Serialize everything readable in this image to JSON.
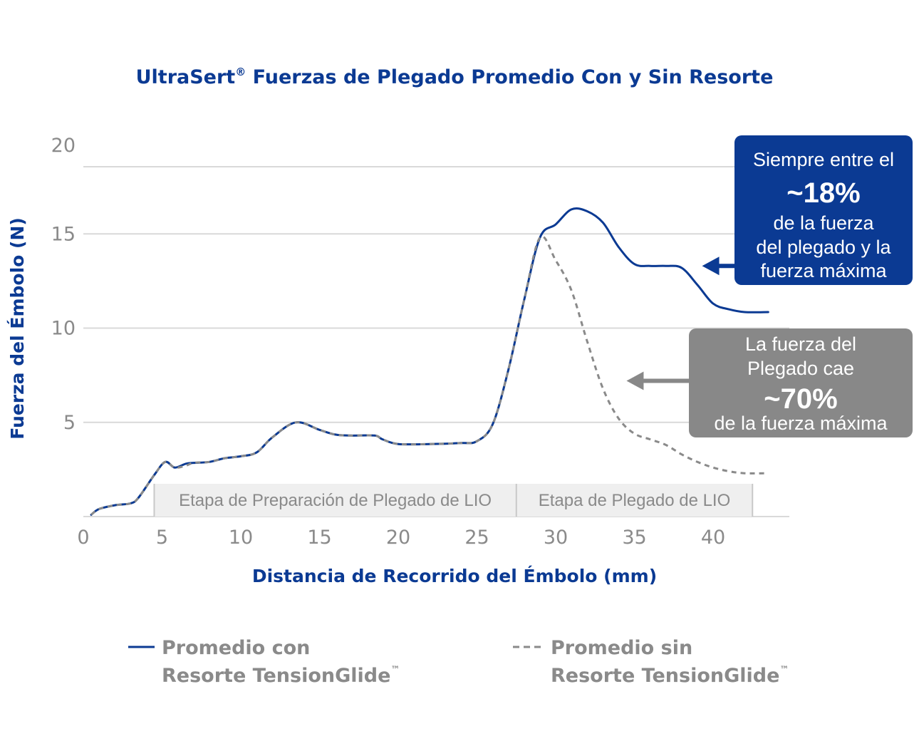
{
  "chart_data": {
    "type": "line",
    "title": "UltraSert",
    "title_mark": "®",
    "title_rest": " Fuerzas de Plegado Promedio Con y Sin Resorte",
    "xlabel": "Distancia de Recorrido del Émbolo  (mm)",
    "ylabel": "Fuerza del Émbolo (N)",
    "xlim": [
      0,
      45
    ],
    "ylim": [
      0,
      20
    ],
    "x_ticks": [
      0,
      5,
      10,
      15,
      20,
      25,
      30,
      35,
      40
    ],
    "y_ticks": [
      5,
      10,
      15,
      20
    ],
    "grid": true,
    "colors": {
      "with_spring": "#0b3a93",
      "without_spring": "#8a8a8a",
      "stage_box": "#efefef"
    },
    "series": [
      {
        "key": "with",
        "name": "Promedio con",
        "name_line2": "Resorte TensionGlide",
        "name_mark": "™",
        "style": "solid",
        "x": [
          0.5,
          1,
          2,
          3,
          3.5,
          4.5,
          5.2,
          5.8,
          6.5,
          7,
          8,
          9,
          10,
          11,
          12,
          13.5,
          15,
          16,
          17,
          18.5,
          19,
          20,
          22,
          24,
          25,
          26,
          27,
          28,
          29,
          30,
          31,
          32,
          33,
          34,
          35,
          36,
          37,
          38,
          39,
          40,
          41,
          42,
          43.5
        ],
        "y": [
          0.1,
          0.4,
          0.6,
          0.7,
          1.0,
          2.2,
          2.9,
          2.6,
          2.8,
          2.85,
          2.9,
          3.1,
          3.2,
          3.4,
          4.2,
          5.0,
          4.6,
          4.35,
          4.3,
          4.3,
          4.1,
          3.85,
          3.85,
          3.9,
          4.0,
          4.9,
          7.8,
          11.5,
          14.8,
          15.5,
          16.3,
          16.2,
          15.6,
          14.3,
          13.4,
          13.3,
          13.3,
          13.2,
          12.3,
          11.3,
          11.0,
          10.85,
          10.85
        ]
      },
      {
        "key": "without",
        "name": "Promedio sin",
        "name_line2": "Resorte  TensionGlide",
        "name_mark": "™",
        "style": "dashed",
        "x": [
          0.5,
          1,
          2,
          3,
          3.5,
          4.5,
          5.2,
          5.8,
          6.5,
          7,
          8,
          9,
          10,
          11,
          12,
          13.5,
          15,
          16,
          17,
          18.5,
          19,
          20,
          22,
          24,
          25,
          26,
          27,
          28,
          29,
          30,
          31,
          32,
          33,
          34,
          35,
          36,
          37,
          38,
          39,
          40,
          41,
          42,
          43.5
        ],
        "y": [
          0.1,
          0.4,
          0.6,
          0.7,
          1.0,
          2.2,
          2.9,
          2.6,
          2.7,
          2.85,
          2.9,
          3.1,
          3.2,
          3.4,
          4.2,
          5.0,
          4.6,
          4.35,
          4.3,
          4.3,
          4.1,
          3.85,
          3.85,
          3.9,
          4.0,
          4.9,
          7.8,
          11.5,
          14.8,
          13.6,
          12.0,
          9.3,
          6.8,
          5.2,
          4.4,
          4.1,
          3.8,
          3.3,
          2.9,
          2.6,
          2.4,
          2.3,
          2.3
        ]
      }
    ],
    "stages": [
      {
        "label": "Etapa de Preparación de Plegado de LIO",
        "x_start": 4.5,
        "x_end": 27.5
      },
      {
        "label": "Etapa de Plegado de LIO",
        "x_start": 27.5,
        "x_end": 42.5
      }
    ],
    "annotations": [
      {
        "key": "blue",
        "lines": [
          "Siempre entre el",
          "~18%",
          "de la fuerza",
          "del plegado y la",
          "fuerza máxima"
        ],
        "color": "#0b3a93",
        "arrow_target": {
          "x": 39.3,
          "y": 13.3
        }
      },
      {
        "key": "gray",
        "lines": [
          "La fuerza del",
          "Plegado cae",
          "~70%",
          "de la fuerza máxima"
        ],
        "color": "#888888",
        "arrow_target": {
          "x": 34.5,
          "y": 7.2
        }
      }
    ],
    "legend_position": "bottom"
  }
}
